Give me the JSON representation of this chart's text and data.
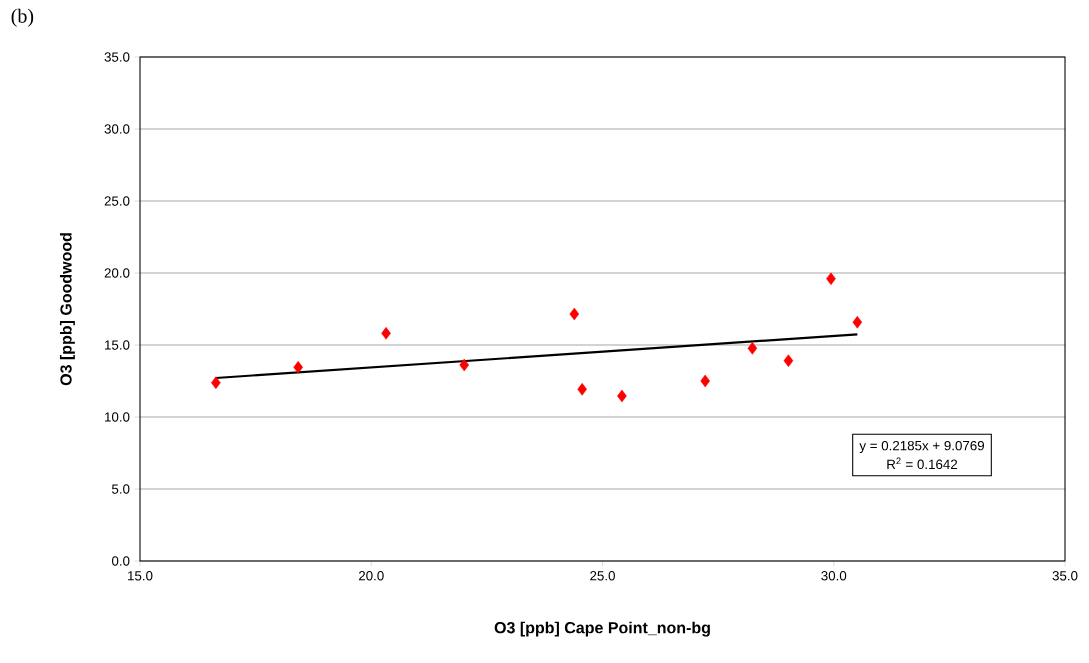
{
  "chart_data": {
    "type": "scatter",
    "xlabel": "O3 [ppb] Cape Point_non-bg",
    "ylabel": "O3 [ppb] Goodwood",
    "xlim": [
      15,
      35
    ],
    "ylim": [
      0,
      35
    ],
    "xticks": [
      {
        "value": 15,
        "label": "15.0"
      },
      {
        "value": 20,
        "label": "20.0"
      },
      {
        "value": 25,
        "label": "25.0"
      },
      {
        "value": 30,
        "label": "30.0"
      },
      {
        "value": 35,
        "label": "35.0"
      }
    ],
    "yticks": [
      {
        "value": 0,
        "label": "0.0"
      },
      {
        "value": 5,
        "label": "5.0"
      },
      {
        "value": 10,
        "label": "10.0"
      },
      {
        "value": 15,
        "label": "15.0"
      },
      {
        "value": 20,
        "label": "20.0"
      },
      {
        "value": 25,
        "label": "25.0"
      },
      {
        "value": 30,
        "label": "30.0"
      },
      {
        "value": 35,
        "label": "35.0"
      }
    ],
    "grid": "y",
    "marker": "diamond",
    "series": [
      {
        "color": "#ff0000",
        "x": [
          16.64,
          18.42,
          20.32,
          22.01,
          24.39,
          24.56,
          25.42,
          27.22,
          28.24,
          29.02,
          29.94,
          30.51
        ],
        "values": [
          12.38,
          13.45,
          15.81,
          13.61,
          17.15,
          11.92,
          11.46,
          12.5,
          14.77,
          13.91,
          19.6,
          16.58
        ]
      },
      {
        "type": "line",
        "color": "#000000",
        "marker": "none",
        "line_style": "solid",
        "x": [
          16.64,
          30.51
        ],
        "values": [
          12.71,
          15.74
        ]
      }
    ],
    "annotations": [
      "(b)",
      "y = 0.2185x  + 9.0769",
      "R$^{2}$ = 0.1642"
    ]
  }
}
